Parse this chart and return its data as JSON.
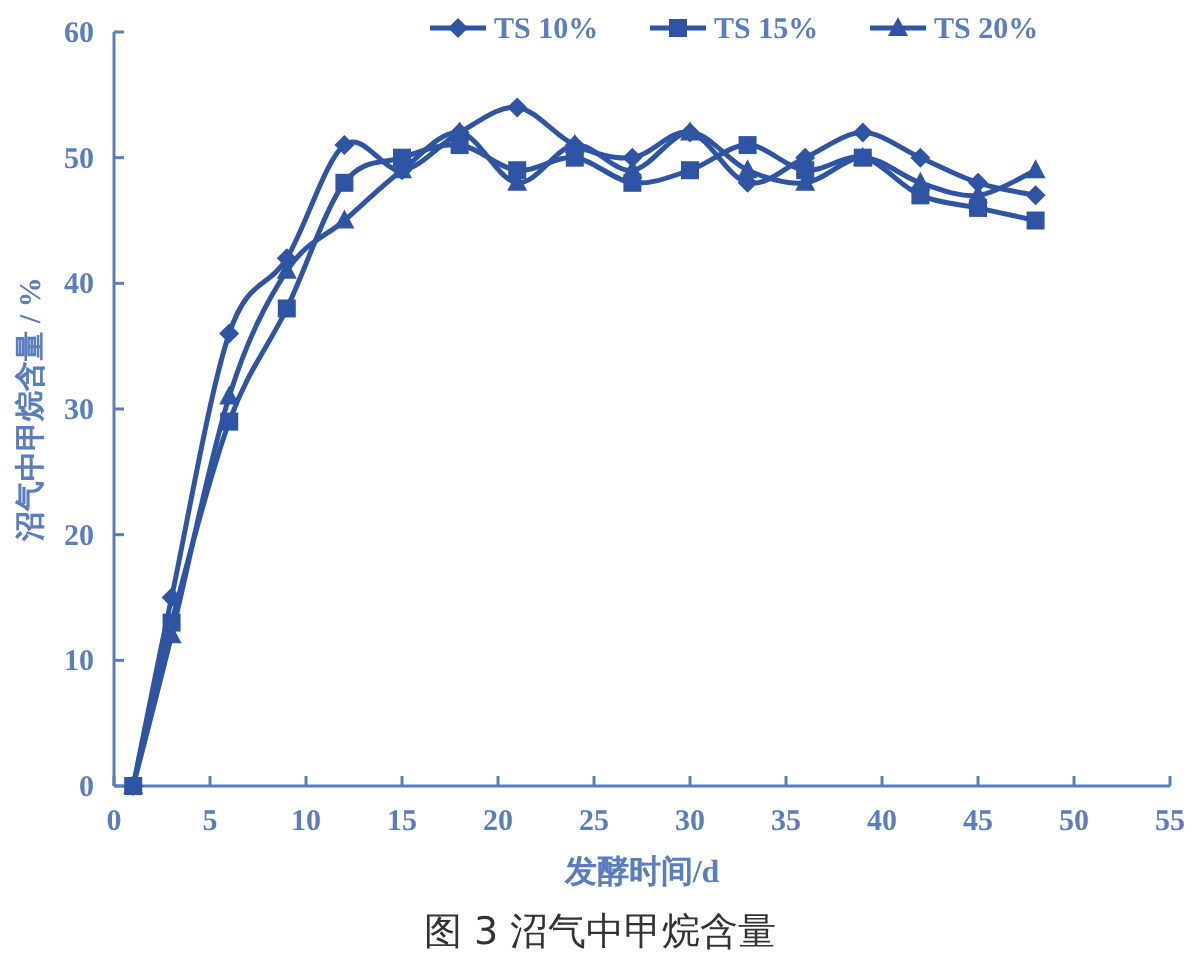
{
  "chart_data": {
    "type": "line",
    "title": "图 3 沼气中甲烷含量",
    "xlabel": "发酵时间/d",
    "ylabel": "沼气中甲烷含量 / %",
    "x": [
      1,
      3,
      6,
      9,
      12,
      15,
      18,
      21,
      24,
      27,
      30,
      33,
      36,
      39,
      42,
      45,
      48
    ],
    "series": [
      {
        "name": "TS 10%",
        "color": "#2e54a3",
        "marker": "diamond",
        "values": [
          0,
          15,
          36,
          42,
          51,
          49,
          52,
          54,
          51,
          50,
          52,
          48,
          50,
          52,
          50,
          48,
          47
        ]
      },
      {
        "name": "TS 15%",
        "color": "#2e54a3",
        "marker": "square",
        "values": [
          0,
          13,
          29,
          38,
          48,
          50,
          51,
          49,
          50,
          48,
          49,
          51,
          49,
          50,
          47,
          46,
          45
        ]
      },
      {
        "name": "TS 20%",
        "color": "#2e54a3",
        "marker": "triangle",
        "values": [
          0,
          12,
          31,
          41,
          45,
          49,
          52,
          48,
          51,
          49,
          52,
          49,
          48,
          50,
          48,
          47,
          49
        ]
      }
    ],
    "xlim": [
      0,
      55
    ],
    "xticks": [
      0,
      5,
      10,
      15,
      20,
      25,
      30,
      35,
      40,
      45,
      50,
      55
    ],
    "ylim": [
      0,
      60
    ],
    "yticks": [
      0,
      10,
      20,
      30,
      40,
      50,
      60
    ],
    "legend": "top",
    "grid": false,
    "line_style": "solid"
  }
}
